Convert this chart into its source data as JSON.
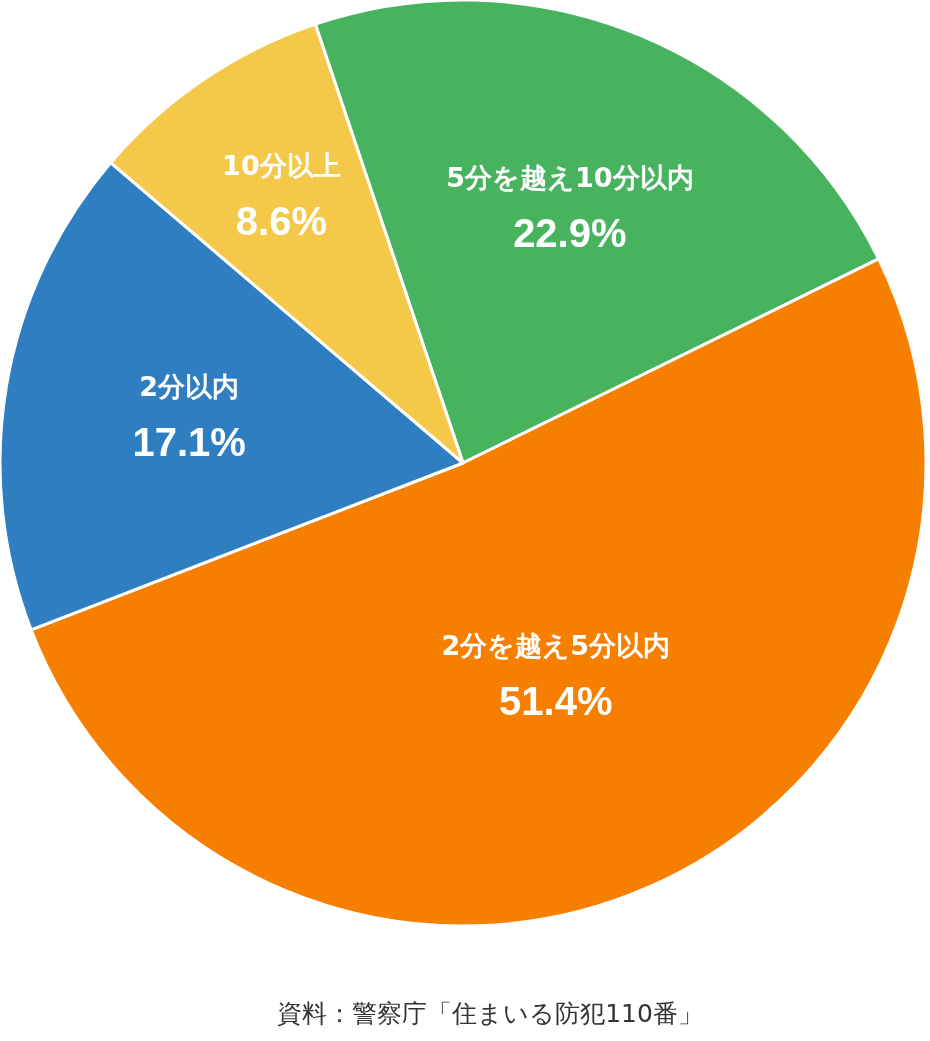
{
  "chart_data": {
    "type": "pie",
    "categories": [
      "5分を越え10分以内",
      "2分を越え5分以内",
      "2分以内",
      "10分以上"
    ],
    "values": [
      22.9,
      51.4,
      17.1,
      8.6
    ],
    "colors": [
      "#48b35e",
      "#f77f00",
      "#2f7ec1",
      "#f4c94a"
    ],
    "value_labels": [
      "22.9%",
      "51.4%",
      "17.1%",
      "8.6%"
    ],
    "annotations": [
      "資料：警察庁「住まいる防犯110番」"
    ]
  }
}
